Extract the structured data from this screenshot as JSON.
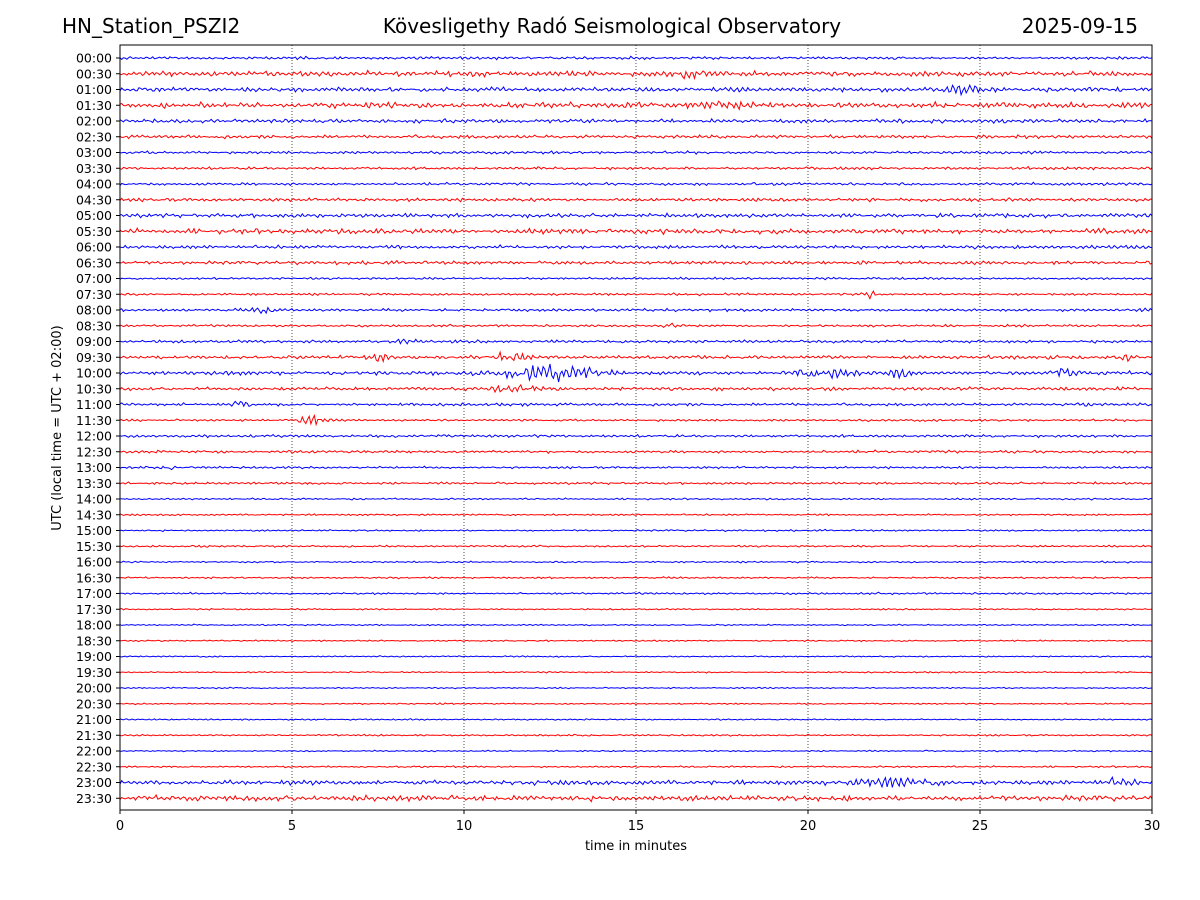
{
  "header": {
    "station": "HN_Station_PSZI2",
    "observatory": "Kövesligethy Radó Seismological Observatory",
    "date": "2025-09-15"
  },
  "chart_data": {
    "type": "line",
    "title": "Kövesligethy Radó Seismological Observatory",
    "xlabel": "time in minutes",
    "ylabel": "UTC (local time = UTC + 02:00)",
    "xlim": [
      0,
      30
    ],
    "xticks": [
      0,
      5,
      10,
      15,
      20,
      25,
      30
    ],
    "vertical_gridlines": [
      5,
      10,
      15,
      20,
      25
    ],
    "grid": "vertical dotted",
    "row_labels": [
      "00:00",
      "00:30",
      "01:00",
      "01:30",
      "02:00",
      "02:30",
      "03:00",
      "03:30",
      "04:00",
      "04:30",
      "05:00",
      "05:30",
      "06:00",
      "06:30",
      "07:00",
      "07:30",
      "08:00",
      "08:30",
      "09:00",
      "09:30",
      "10:00",
      "10:30",
      "11:00",
      "11:30",
      "12:00",
      "12:30",
      "13:00",
      "13:30",
      "14:00",
      "14:30",
      "15:00",
      "15:30",
      "16:00",
      "16:30",
      "17:00",
      "17:30",
      "18:00",
      "18:30",
      "19:00",
      "19:30",
      "20:00",
      "20:30",
      "21:00",
      "21:30",
      "22:00",
      "22:30",
      "23:00",
      "23:30"
    ],
    "row_colors": [
      "#0000ff",
      "#ff0000"
    ],
    "noise_level": [
      0.5,
      0.9,
      0.8,
      1.0,
      0.7,
      0.6,
      0.5,
      0.5,
      0.5,
      0.6,
      0.7,
      0.9,
      0.6,
      0.6,
      0.4,
      0.4,
      0.5,
      0.4,
      0.5,
      0.6,
      0.7,
      0.6,
      0.5,
      0.4,
      0.5,
      0.5,
      0.4,
      0.4,
      0.3,
      0.3,
      0.3,
      0.35,
      0.3,
      0.3,
      0.35,
      0.25,
      0.25,
      0.25,
      0.25,
      0.25,
      0.25,
      0.25,
      0.25,
      0.3,
      0.25,
      0.3,
      0.8,
      1.0
    ],
    "events": [
      {
        "row": 1,
        "minute": 16.5,
        "amplitude": 1.4,
        "duration": 1.2
      },
      {
        "row": 2,
        "minute": 24.5,
        "amplitude": 1.3,
        "duration": 1.0
      },
      {
        "row": 3,
        "minute": 17.5,
        "amplitude": 1.3,
        "duration": 1.5
      },
      {
        "row": 15,
        "minute": 21.8,
        "amplitude": 1.4,
        "duration": 0.4
      },
      {
        "row": 16,
        "minute": 4.2,
        "amplitude": 1.3,
        "duration": 0.6
      },
      {
        "row": 16,
        "minute": 29.8,
        "amplitude": 1.3,
        "duration": 0.3
      },
      {
        "row": 17,
        "minute": 16.0,
        "amplitude": 1.2,
        "duration": 0.3
      },
      {
        "row": 18,
        "minute": 8.3,
        "amplitude": 1.0,
        "duration": 0.8
      },
      {
        "row": 19,
        "minute": 7.5,
        "amplitude": 2.0,
        "duration": 0.6
      },
      {
        "row": 19,
        "minute": 11.3,
        "amplitude": 1.8,
        "duration": 1.2
      },
      {
        "row": 19,
        "minute": 27.0,
        "amplitude": 2.0,
        "duration": 0.4
      },
      {
        "row": 19,
        "minute": 29.3,
        "amplitude": 1.5,
        "duration": 0.3
      },
      {
        "row": 20,
        "minute": 12.5,
        "amplitude": 3.5,
        "duration": 2.5
      },
      {
        "row": 20,
        "minute": 20.5,
        "amplitude": 1.8,
        "duration": 1.5
      },
      {
        "row": 20,
        "minute": 22.7,
        "amplitude": 2.0,
        "duration": 0.5
      },
      {
        "row": 20,
        "minute": 27.5,
        "amplitude": 2.2,
        "duration": 0.6
      },
      {
        "row": 21,
        "minute": 11.5,
        "amplitude": 1.5,
        "duration": 1.5
      },
      {
        "row": 22,
        "minute": 3.5,
        "amplitude": 1.5,
        "duration": 0.5
      },
      {
        "row": 22,
        "minute": 28.0,
        "amplitude": 1.2,
        "duration": 0.3
      },
      {
        "row": 23,
        "minute": 5.5,
        "amplitude": 1.8,
        "duration": 0.8
      },
      {
        "row": 26,
        "minute": 1.5,
        "amplitude": 1.2,
        "duration": 0.3
      },
      {
        "row": 46,
        "minute": 22.5,
        "amplitude": 1.6,
        "duration": 2.0
      },
      {
        "row": 46,
        "minute": 29.0,
        "amplitude": 1.4,
        "duration": 0.8
      }
    ]
  }
}
